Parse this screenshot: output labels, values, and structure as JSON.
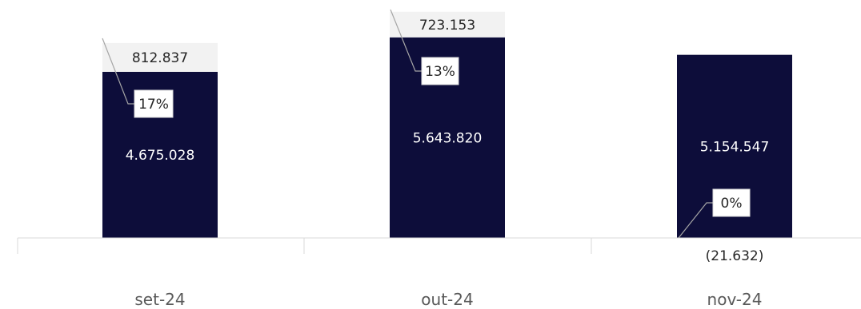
{
  "chart_data": {
    "type": "bar",
    "stacked": true,
    "categories": [
      "set-24",
      "out-24",
      "nov-24"
    ],
    "series": [
      {
        "values": [
          4675028,
          5643820,
          5154547
        ],
        "labels": [
          "4.675.028",
          "5.643.820",
          "5.154.547"
        ],
        "color": "#0d0d3a"
      },
      {
        "values": [
          812837,
          723153,
          -21632
        ],
        "labels": [
          "812.837",
          "723.153",
          "(21.632)"
        ],
        "color": "#f2f2f2"
      }
    ],
    "percent_labels": [
      "17%",
      "13%",
      "0%"
    ],
    "legend": false,
    "grid": false
  }
}
